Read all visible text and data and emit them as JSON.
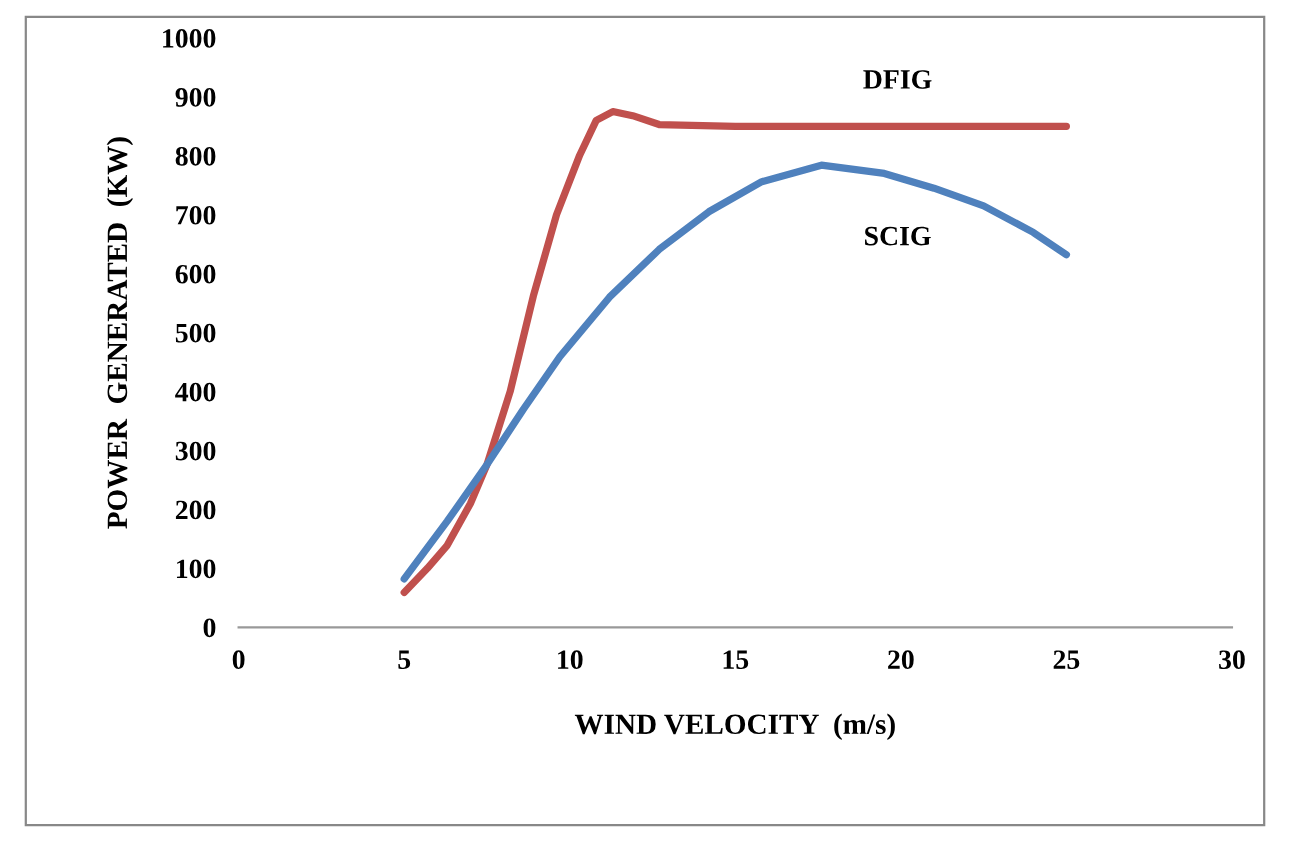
{
  "chart_data": {
    "type": "line",
    "xlabel": "WIND VELOCITY  (m/s)",
    "ylabel": "POWER  GENERATED  (KW)",
    "xlim": [
      0,
      30
    ],
    "xticks": [
      0,
      5,
      10,
      15,
      20,
      25,
      30
    ],
    "ylim": [
      0,
      1000
    ],
    "yticks": [
      0,
      100,
      200,
      300,
      400,
      500,
      600,
      700,
      800,
      900,
      1000
    ],
    "grid": false,
    "marker": "none",
    "line_style": "solid",
    "series": [
      {
        "name": "DFIG",
        "color": "#c0504d",
        "x": [
          5,
          5.7,
          6.3,
          7,
          7.5,
          8.2,
          8.9,
          9.6,
          10.3,
          10.8,
          11.3,
          11.9,
          12.7,
          15,
          20,
          25
        ],
        "values": [
          59,
          100,
          139,
          210,
          276,
          400,
          562,
          700,
          801,
          860,
          875,
          868,
          853,
          850,
          850,
          850
        ]
      },
      {
        "name": "SCIG",
        "color": "#4f81bd",
        "x": [
          5,
          6.3,
          7.5,
          8.6,
          9.7,
          11.2,
          12.7,
          14.2,
          15.8,
          17.6,
          19.5,
          21,
          22.5,
          24,
          25
        ],
        "values": [
          82,
          180,
          276,
          370,
          459,
          560,
          641,
          705,
          756,
          784,
          770,
          745,
          715,
          670,
          632
        ]
      }
    ]
  }
}
